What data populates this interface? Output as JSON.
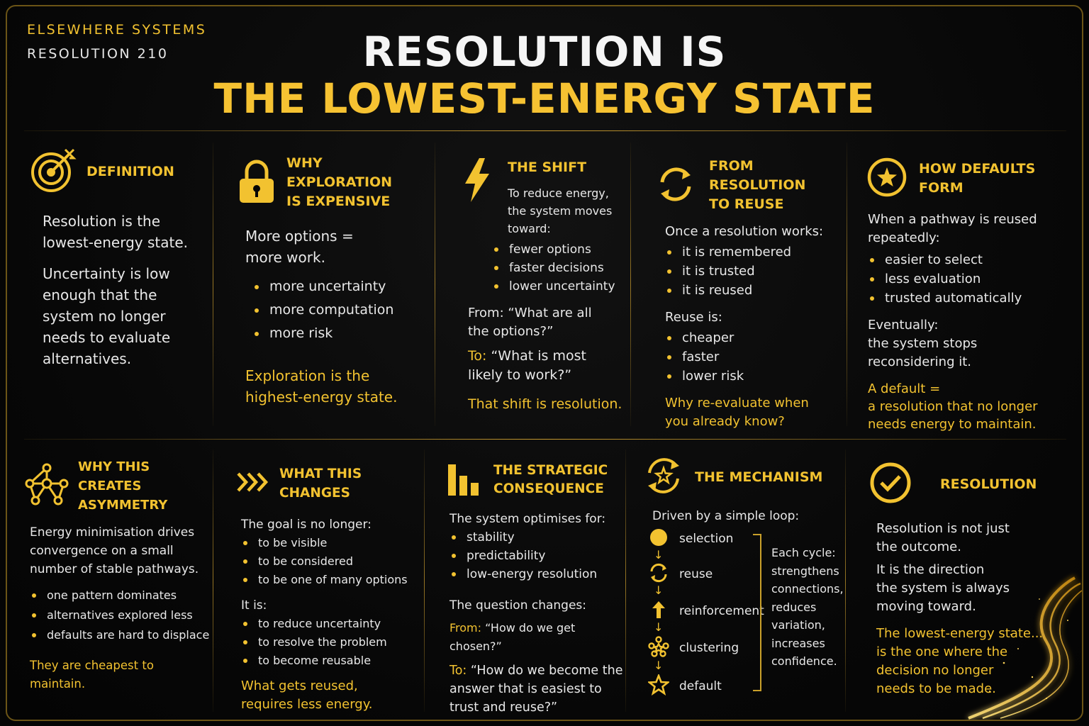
{
  "brand": {
    "company": "ELSEWHERE SYSTEMS",
    "resolution": "RESOLUTION 210"
  },
  "title": {
    "line1": "RESOLUTION IS",
    "line2": "THE LOWEST-ENERGY STATE"
  },
  "colors": {
    "accent": "#f2c230",
    "background": "#050505",
    "text": "#e8e8e8"
  },
  "top": {
    "definition": {
      "icon": "target-icon",
      "title": "DEFINITION",
      "p1": "Resolution is the\nlowest-energy state.",
      "p2": "Uncertainty is low\nenough that the\nsystem no longer\nneeds to evaluate\nalternatives."
    },
    "exploration": {
      "icon": "lock-icon",
      "title": "WHY EXPLORATION\nIS EXPENSIVE",
      "intro": "More options =\nmore work.",
      "bullets": [
        "more uncertainty",
        "more computation",
        "more risk"
      ],
      "conclusion": "Exploration is the\nhighest-energy state."
    },
    "shift": {
      "icon": "lightning-icon",
      "title": "THE SHIFT",
      "intro": "To reduce energy,\nthe system moves\ntoward:",
      "bullets": [
        "fewer options",
        "faster decisions",
        "lower uncertainty"
      ],
      "from": "From: “What are all\nthe options?”",
      "to_label": "To:",
      "to_text": " “What is most\nlikely to work?”",
      "conclusion": "That shift is resolution."
    },
    "reuse": {
      "icon": "cycle-arrows-icon",
      "title": "FROM RESOLUTION\nTO REUSE",
      "intro": "Once a resolution works:",
      "bullets1": [
        "it is remembered",
        "it is trusted",
        "it is reused"
      ],
      "mid": "Reuse is:",
      "bullets2": [
        "cheaper",
        "faster",
        "lower risk"
      ],
      "conclusion": "Why re-evaluate when\nyou already know?"
    },
    "defaults": {
      "icon": "star-circle-icon",
      "title": "HOW DEFAULTS FORM",
      "intro": "When a pathway is reused\nrepeatedly:",
      "bullets": [
        "easier to select",
        "less evaluation",
        "trusted automatically"
      ],
      "mid": "Eventually:\nthe system stops\nreconsidering it.",
      "conclusion": "A default =\na resolution that no longer\nneeds energy to maintain."
    }
  },
  "bottom": {
    "asymmetry": {
      "icon": "network-icon",
      "title": "WHY THIS CREATES\nASYMMETRY",
      "intro": "Energy minimisation drives\nconvergence on a small\nnumber of stable pathways.",
      "bullets": [
        "one pattern dominates",
        "alternatives explored less",
        "defaults are hard to displace"
      ],
      "conclusion": "They are cheapest to maintain."
    },
    "changes": {
      "icon": "chevrons-icon",
      "title": "WHAT THIS CHANGES",
      "intro": "The goal is no longer:",
      "bullets1": [
        "to be visible",
        "to be considered",
        "to be one of many options"
      ],
      "mid": "It is:",
      "bullets2": [
        "to reduce uncertainty",
        "to resolve the problem",
        "to become reusable"
      ],
      "conclusion": "What gets reused,\nrequires less energy."
    },
    "strategic": {
      "icon": "bar-chart-icon",
      "title": "THE STRATEGIC\nCONSEQUENCE",
      "intro": "The system optimises for:",
      "bullets": [
        "stability",
        "predictability",
        "low-energy resolution"
      ],
      "mid": "The question changes:",
      "from_label": "From:",
      "from_text": " “How do we get chosen?”",
      "to_label": "To:",
      "to_text": " “How do we become the\nanswer that is easiest to\ntrust and reuse?”"
    },
    "mechanism": {
      "icon": "star-cycle-icon",
      "title": "THE MECHANISM",
      "intro": "Driven by a simple loop:",
      "steps": [
        {
          "label": "selection",
          "icon": "dot-icon"
        },
        {
          "label": "reuse",
          "icon": "cycle-icon"
        },
        {
          "label": "reinforcement",
          "icon": "arrow-up-icon"
        },
        {
          "label": "clustering",
          "icon": "cluster-icon"
        },
        {
          "label": "default",
          "icon": "star-icon"
        }
      ],
      "cycle_note": "Each cycle:\nstrengthens\nconnections,\nreduces\nvariation,\nincreases\nconfidence."
    },
    "resolution": {
      "icon": "check-circle-icon",
      "title": "RESOLUTION",
      "p1": "Resolution is not just\nthe outcome.",
      "p2": "It is the direction\nthe system is always\nmoving toward.",
      "conclusion": "The lowest-energy state...\nis the one where the\ndecision no longer\nneeds to be made."
    }
  }
}
